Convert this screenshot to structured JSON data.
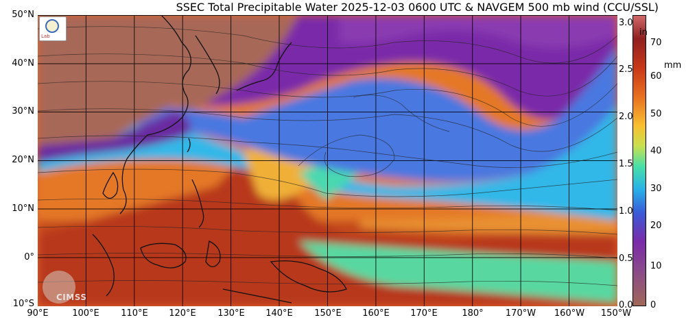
{
  "title": "SSEC Total Precipitable Water  2025-12-03 0600 UTC & NAVGEM 500 mb wind (CCU/SSL)",
  "lat_labels": [
    "50°N",
    "40°N",
    "30°N",
    "20°N",
    "10°N",
    "0°",
    "10°S"
  ],
  "lon_labels": [
    "90°E",
    "100°E",
    "110°E",
    "120°E",
    "130°E",
    "140°E",
    "150°E",
    "160°E",
    "170°E",
    "180°",
    "170°W",
    "160°W",
    "150°W"
  ],
  "colorbar": {
    "unit_left": "in",
    "unit_right": "mm",
    "ticks_in": [
      "3.0",
      "2.5",
      "2.0",
      "1.5",
      "1.0",
      "0.5",
      "0.0"
    ],
    "ticks_mm": [
      "70",
      "60",
      "50",
      "40",
      "30",
      "20",
      "10",
      "0"
    ]
  },
  "logo_text": "Lab",
  "watermark": "CIMSS",
  "colors": {
    "land": "#b07060",
    "moist_high": "#a83018",
    "moist_mid": "#e88828",
    "dry": "#7a30a8",
    "mid": "#28b0e8"
  }
}
